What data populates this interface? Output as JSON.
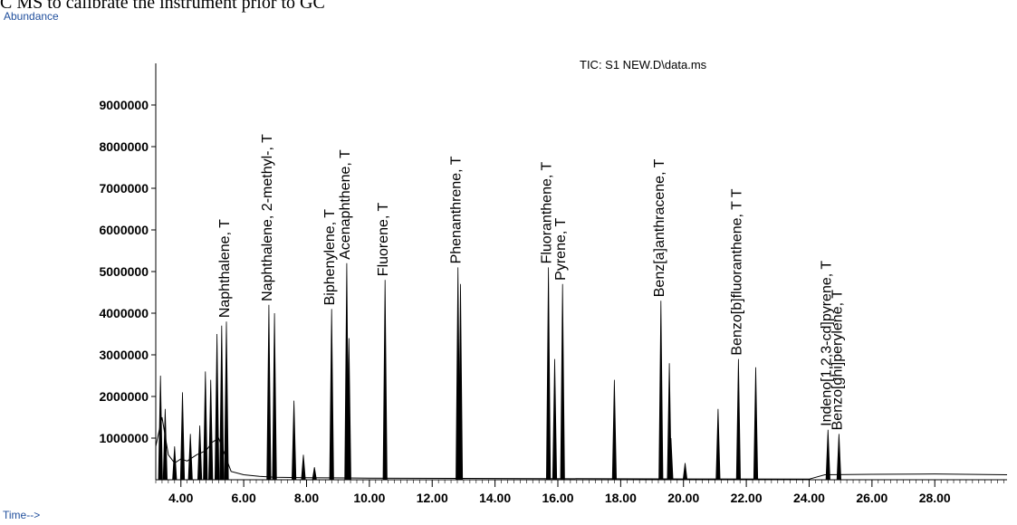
{
  "caption": "C MS to calibrate the instrument prior to GC",
  "chart_data": {
    "type": "line",
    "title": "TIC: S1 NEW.D\\data.ms",
    "ylabel": "Abundance",
    "xlabel": "Time-->",
    "xlim": [
      3.2,
      30.3
    ],
    "ylim": [
      0,
      10000000
    ],
    "x_ticks": [
      "4.00",
      "6.00",
      "8.00",
      "10.00",
      "12.00",
      "14.00",
      "16.00",
      "18.00",
      "20.00",
      "22.00",
      "24.00",
      "26.00",
      "28.00"
    ],
    "y_ticks": [
      "1000000",
      "2000000",
      "3000000",
      "4000000",
      "5000000",
      "6000000",
      "7000000",
      "8000000",
      "9000000"
    ],
    "baseline": [
      [
        3.2,
        800000
      ],
      [
        3.4,
        1500000
      ],
      [
        3.6,
        600000
      ],
      [
        3.8,
        400000
      ],
      [
        4.0,
        500000
      ],
      [
        4.2,
        450000
      ],
      [
        4.5,
        600000
      ],
      [
        4.8,
        700000
      ],
      [
        5.0,
        900000
      ],
      [
        5.2,
        1000000
      ],
      [
        5.6,
        200000
      ],
      [
        6.0,
        120000
      ],
      [
        6.5,
        80000
      ],
      [
        7.0,
        60000
      ],
      [
        8.0,
        50000
      ],
      [
        10.0,
        40000
      ],
      [
        14.0,
        30000
      ],
      [
        20.0,
        20000
      ],
      [
        24.0,
        15000
      ],
      [
        24.5,
        120000
      ],
      [
        26.0,
        130000
      ],
      [
        28.0,
        140000
      ],
      [
        30.3,
        120000
      ]
    ],
    "peaks": [
      [
        3.35,
        2500000
      ],
      [
        3.5,
        1700000
      ],
      [
        3.8,
        800000
      ],
      [
        4.05,
        2100000
      ],
      [
        4.3,
        1100000
      ],
      [
        4.6,
        1300000
      ],
      [
        4.78,
        2600000
      ],
      [
        4.95,
        2400000
      ],
      [
        5.15,
        3500000
      ],
      [
        5.3,
        3700000
      ],
      [
        5.45,
        3800000
      ],
      [
        6.8,
        4200000
      ],
      [
        6.98,
        4000000
      ],
      [
        7.6,
        1900000
      ],
      [
        7.9,
        600000
      ],
      [
        8.25,
        300000
      ],
      [
        8.8,
        4100000
      ],
      [
        9.28,
        5200000
      ],
      [
        9.35,
        3400000
      ],
      [
        10.5,
        4800000
      ],
      [
        12.82,
        5100000
      ],
      [
        12.9,
        4700000
      ],
      [
        15.7,
        5100000
      ],
      [
        15.9,
        2900000
      ],
      [
        16.15,
        4700000
      ],
      [
        17.8,
        2400000
      ],
      [
        19.28,
        4300000
      ],
      [
        19.55,
        2800000
      ],
      [
        19.6,
        1000000
      ],
      [
        20.05,
        400000
      ],
      [
        21.1,
        1700000
      ],
      [
        21.75,
        2900000
      ],
      [
        22.3,
        2700000
      ],
      [
        24.6,
        1200000
      ],
      [
        24.95,
        1100000
      ]
    ],
    "annotations": [
      {
        "text": "Naphthalene, T",
        "x": 5.45,
        "y": 3800000
      },
      {
        "text": "Naphthalene, 2-methyl-, T",
        "x": 6.8,
        "y": 4200000
      },
      {
        "text": "Biphenylene, T",
        "x": 8.8,
        "y": 4100000
      },
      {
        "text": "Acenaphthene, T",
        "x": 9.28,
        "y": 5200000
      },
      {
        "text": "Fluorene, T",
        "x": 10.5,
        "y": 4800000
      },
      {
        "text": "Phenanthrene, T",
        "x": 12.82,
        "y": 5100000
      },
      {
        "text": "Fluoranthene, T",
        "x": 15.7,
        "y": 5100000
      },
      {
        "text": "Pyrene, T",
        "x": 16.15,
        "y": 4700000
      },
      {
        "text": "Benz[a]anthracene, T",
        "x": 19.28,
        "y": 4300000
      },
      {
        "text": "Benzo[b]fluoranthene, T T",
        "x": 21.75,
        "y": 2900000
      },
      {
        "text": "Indeno[1,2,3-cd]pyrene, T",
        "x": 24.6,
        "y": 1200000
      },
      {
        "text": "Benzo[ghi]perylene, T",
        "x": 24.95,
        "y": 1100000
      }
    ],
    "grid": false,
    "legend": "none"
  }
}
